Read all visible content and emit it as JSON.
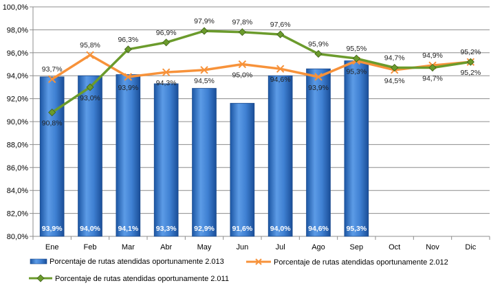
{
  "chart_data": {
    "type": "bar",
    "title": "",
    "xlabel": "",
    "ylabel": "",
    "ylim": [
      80,
      100
    ],
    "yticks": [
      "80,0%",
      "82,0%",
      "84,0%",
      "86,0%",
      "88,0%",
      "90,0%",
      "92,0%",
      "94,0%",
      "96,0%",
      "98,0%",
      "100,0%"
    ],
    "categories": [
      "Ene",
      "Feb",
      "Mar",
      "Abr",
      "May",
      "Jun",
      "Jul",
      "Ago",
      "Sep",
      "Oct",
      "Nov",
      "Dic"
    ],
    "grid": true,
    "legend": "bottom",
    "series": [
      {
        "name": "Porcentaje de rutas atendidas oportunamente 2.013",
        "type": "bar",
        "color": "#3d7fd0",
        "values": [
          93.9,
          94.0,
          94.1,
          93.3,
          92.9,
          91.6,
          94.0,
          94.6,
          95.3,
          null,
          null,
          null
        ],
        "labels": [
          "93,9%",
          "94,0%",
          "94,1%",
          "93,3%",
          "92,9%",
          "91,6%",
          "94,0%",
          "94,6%",
          "95,3%",
          "",
          "",
          ""
        ]
      },
      {
        "name": "Porcentaje de rutas atendidas oportunamente 2.012",
        "type": "line",
        "color": "#f7923a",
        "values": [
          93.7,
          95.8,
          93.9,
          94.3,
          94.5,
          95.0,
          94.6,
          93.9,
          95.3,
          94.5,
          94.9,
          95.2
        ],
        "labels": [
          "93,7%",
          "95,8%",
          "93,9%",
          "94,3%",
          "94,5%",
          "95,0%",
          "94,6%",
          "93,9%",
          "95,3%",
          "94,5%",
          "94,9%",
          "95,2%"
        ]
      },
      {
        "name": "Porcentaje de rutas atendidas oportunamente 2.011",
        "type": "line",
        "color": "#6b9b2c",
        "values": [
          90.8,
          93.0,
          96.3,
          96.9,
          97.9,
          97.8,
          97.6,
          95.9,
          95.5,
          94.7,
          94.7,
          95.2
        ],
        "labels": [
          "90,8%",
          "93,0%",
          "96,3%",
          "96,9%",
          "97,9%",
          "97,8%",
          "97,6%",
          "95,9%",
          "95,5%",
          "94,7%",
          "94,7%",
          "95,2%"
        ]
      }
    ]
  }
}
